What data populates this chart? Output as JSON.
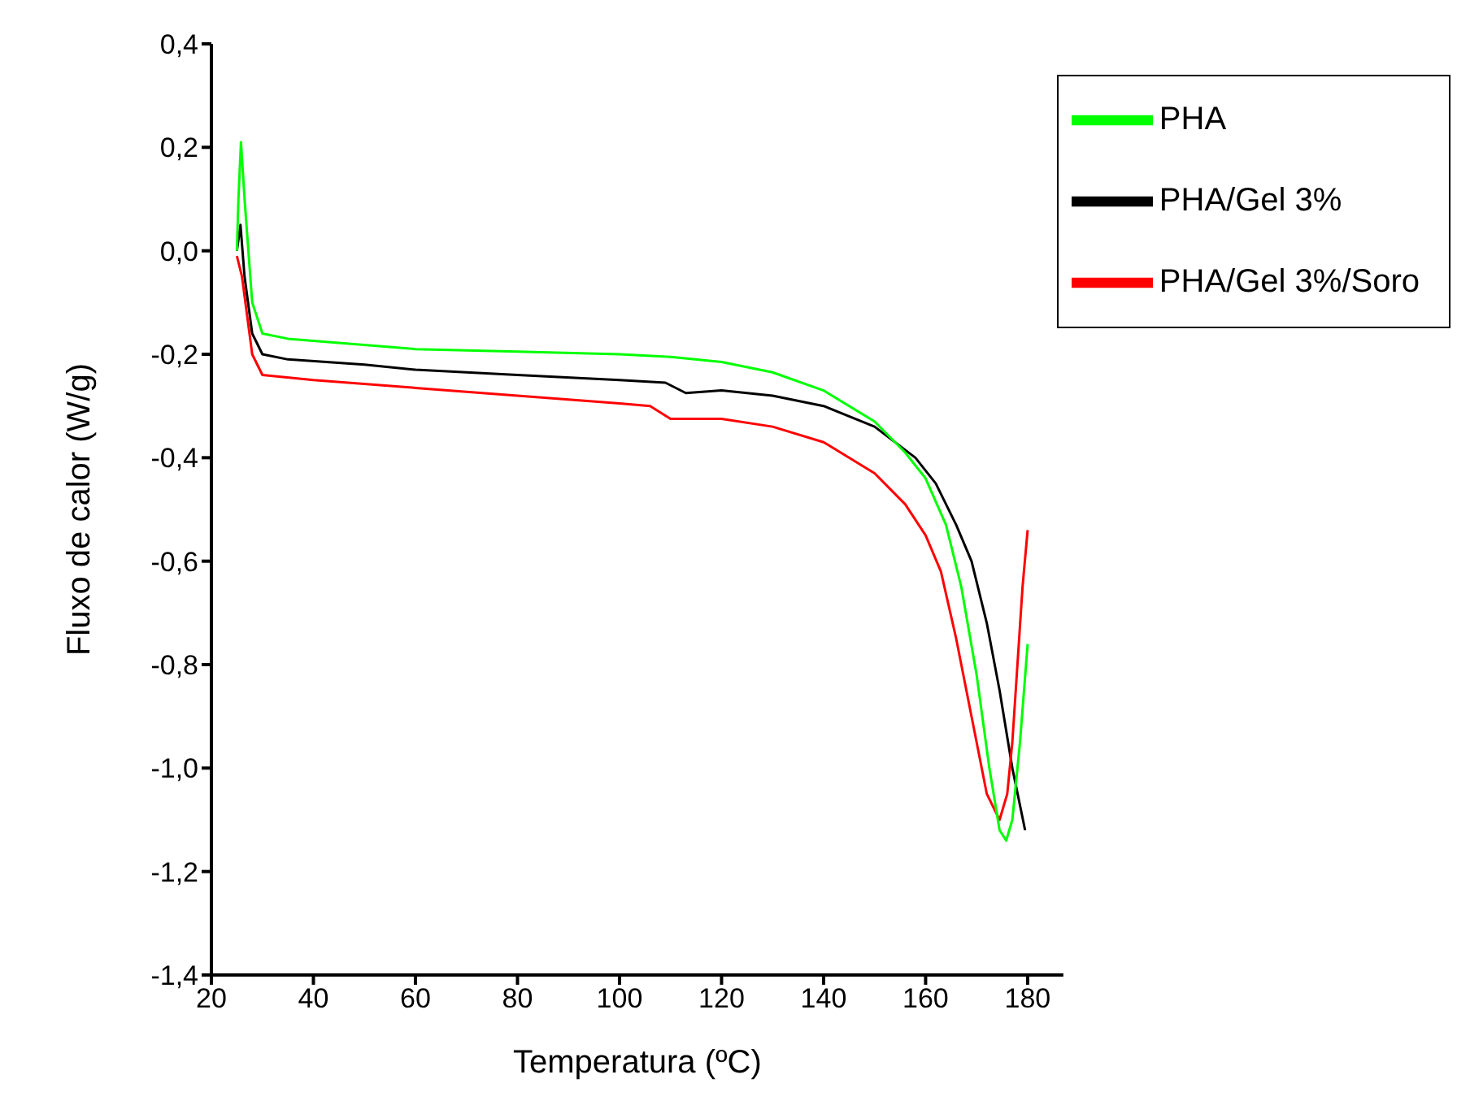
{
  "chart_data": {
    "type": "line",
    "xlabel": "Temperatura (ºC)",
    "ylabel": "Fluxo de calor (W/g)",
    "xlim": [
      20,
      187
    ],
    "xticks": [
      20,
      40,
      60,
      80,
      100,
      120,
      140,
      160,
      180
    ],
    "ylim": [
      -1.4,
      0.4
    ],
    "yticks": [
      {
        "value": -1.4,
        "label": "-1,4"
      },
      {
        "value": -1.2,
        "label": "-1,2"
      },
      {
        "value": -1,
        "label": "-1,0"
      },
      {
        "value": -0.8,
        "label": "-0,8"
      },
      {
        "value": -0.6,
        "label": "-0,6"
      },
      {
        "value": -0.4,
        "label": "-0,4"
      },
      {
        "value": -0.2,
        "label": "-0,2"
      },
      {
        "value": 0,
        "label": "0,0"
      },
      {
        "value": 0.2,
        "label": "0,2"
      },
      {
        "value": 0.4,
        "label": "0,4"
      }
    ],
    "grid": false,
    "legend": "top right",
    "marker": "none",
    "line_style": "solid",
    "series": [
      {
        "name": "PHA/Gel 3%",
        "color": "#000000",
        "x": [
          25,
          25.7,
          26.5,
          28,
          30,
          35,
          50,
          60,
          80,
          100,
          109,
          113,
          120,
          130,
          140,
          150,
          158,
          162,
          166,
          169,
          172,
          174.5,
          177,
          179.5
        ],
        "values": [
          0,
          0.05,
          -0.05,
          -0.16,
          -0.2,
          -0.21,
          -0.22,
          -0.23,
          -0.24,
          -0.25,
          -0.255,
          -0.275,
          -0.27,
          -0.28,
          -0.3,
          -0.34,
          -0.4,
          -0.45,
          -0.53,
          -0.6,
          -0.72,
          -0.85,
          -1,
          -1.12
        ]
      },
      {
        "name": "PHA/Gel 3%/Soro",
        "color": "#ff0000",
        "x": [
          25,
          26,
          28,
          30,
          40,
          60,
          80,
          100,
          106,
          110,
          112,
          120,
          130,
          140,
          150,
          156,
          160,
          163,
          166,
          169,
          172,
          174.5,
          176,
          177,
          178,
          179,
          180
        ],
        "values": [
          -0.01,
          -0.05,
          -0.2,
          -0.24,
          -0.25,
          -0.265,
          -0.28,
          -0.295,
          -0.3,
          -0.325,
          -0.325,
          -0.325,
          -0.34,
          -0.37,
          -0.43,
          -0.49,
          -0.55,
          -0.62,
          -0.75,
          -0.9,
          -1.05,
          -1.1,
          -1.05,
          -0.95,
          -0.8,
          -0.65,
          -0.54
        ]
      },
      {
        "name": "PHA",
        "color": "#00ff00",
        "x": [
          25,
          25.3,
          25.8,
          26.5,
          28,
          30,
          35,
          60,
          80,
          100,
          110,
          120,
          130,
          140,
          150,
          156,
          160,
          164,
          167,
          170,
          172.5,
          174.5,
          175.8,
          177,
          178.5,
          180
        ],
        "values": [
          0,
          0.1,
          0.21,
          0.1,
          -0.1,
          -0.16,
          -0.17,
          -0.19,
          -0.195,
          -0.2,
          -0.205,
          -0.215,
          -0.235,
          -0.27,
          -0.33,
          -0.39,
          -0.44,
          -0.53,
          -0.65,
          -0.82,
          -1,
          -1.12,
          -1.14,
          -1.1,
          -0.95,
          -0.76
        ]
      }
    ]
  }
}
